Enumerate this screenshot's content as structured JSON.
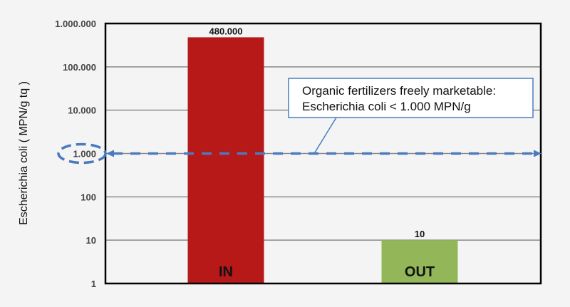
{
  "chart_data": {
    "type": "bar",
    "categories": [
      "IN",
      "OUT"
    ],
    "values": [
      480000,
      10
    ],
    "value_labels": [
      "480.000",
      "10"
    ],
    "colors": [
      "#b71818",
      "#93b758"
    ],
    "ylabel": "Escherichia coli ( MPN/g tq )",
    "xlabel": "",
    "yscale": "log",
    "ylim": [
      1,
      1000000
    ],
    "yticks": [
      1,
      10,
      100,
      1000,
      10000,
      100000,
      1000000
    ],
    "ytick_labels": [
      "1",
      "10",
      "100",
      "1.000",
      "10.000",
      "100.000",
      "1.000.000"
    ],
    "grid": true,
    "threshold": {
      "value": 1000,
      "color": "#4a7bbf",
      "annotation_lines": [
        "Organic fertilizers freely marketable:",
        "Escherichia coli < 1.000 MPN/g"
      ]
    }
  }
}
